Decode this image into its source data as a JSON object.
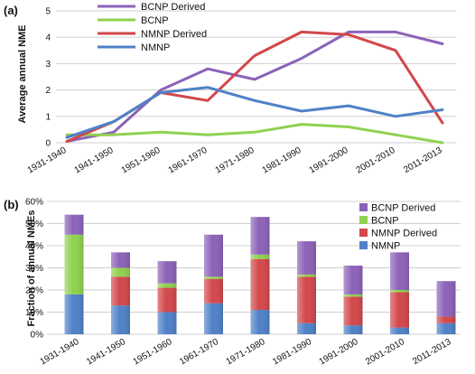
{
  "chart_data": [
    {
      "type": "line",
      "panel_label": "(a)",
      "title": "",
      "xlabel": "",
      "ylabel": "Average annual NME",
      "categories": [
        "1931-1940",
        "1941-1950",
        "1951-1960",
        "1961-1970",
        "1971-1980",
        "1981-1990",
        "1991-2000",
        "2001-2010",
        "2011-2013"
      ],
      "ylim": [
        0,
        5
      ],
      "yticks": [
        0,
        1,
        2,
        3,
        4,
        5
      ],
      "grid": true,
      "legend_position": "top-left",
      "series": [
        {
          "name": "BCNP Derived",
          "color": "#8c62b8",
          "values": [
            0.05,
            0.4,
            2.0,
            2.8,
            2.4,
            3.2,
            4.2,
            4.2,
            3.75
          ]
        },
        {
          "name": "BCNP",
          "color": "#8fd14f",
          "values": [
            0.3,
            0.3,
            0.4,
            0.3,
            0.4,
            0.7,
            0.6,
            0.3,
            0.0
          ]
        },
        {
          "name": "NMNP Derived",
          "color": "#d2474a",
          "values": [
            0.05,
            0.8,
            1.9,
            1.6,
            3.3,
            4.2,
            4.1,
            3.5,
            0.75
          ]
        },
        {
          "name": "NMNP",
          "color": "#4f81c7",
          "values": [
            0.2,
            0.8,
            1.9,
            2.1,
            1.6,
            1.2,
            1.4,
            1.0,
            1.25
          ]
        }
      ]
    },
    {
      "type": "bar",
      "stacked": true,
      "panel_label": "(b)",
      "title": "",
      "xlabel": "",
      "ylabel": "Fraction of annual NMEs",
      "categories": [
        "1931-1940",
        "1941-1950",
        "1951-1960",
        "1961-1970",
        "1971-1980",
        "1981-1990",
        "1991-2000",
        "2001-2010",
        "2011-2013"
      ],
      "ylim": [
        0,
        60
      ],
      "yticks": [
        "0%",
        "10%",
        "20%",
        "30%",
        "40%",
        "50%",
        "60%"
      ],
      "grid": true,
      "legend_position": "right",
      "series": [
        {
          "name": "NMNP",
          "color": "#4f81c7",
          "values": [
            18,
            13,
            10,
            14,
            11,
            5,
            4,
            3,
            5
          ]
        },
        {
          "name": "NMNP Derived",
          "color": "#d2474a",
          "values": [
            0,
            13,
            11,
            11,
            23,
            21,
            13,
            16,
            3
          ]
        },
        {
          "name": "BCNP",
          "color": "#8fd14f",
          "values": [
            27,
            4,
            2,
            1,
            2,
            1,
            1,
            1,
            0
          ]
        },
        {
          "name": "BCNP Derived",
          "color": "#8c62b8",
          "values": [
            9,
            7,
            10,
            19,
            17,
            15,
            13,
            17,
            16
          ]
        }
      ]
    }
  ]
}
